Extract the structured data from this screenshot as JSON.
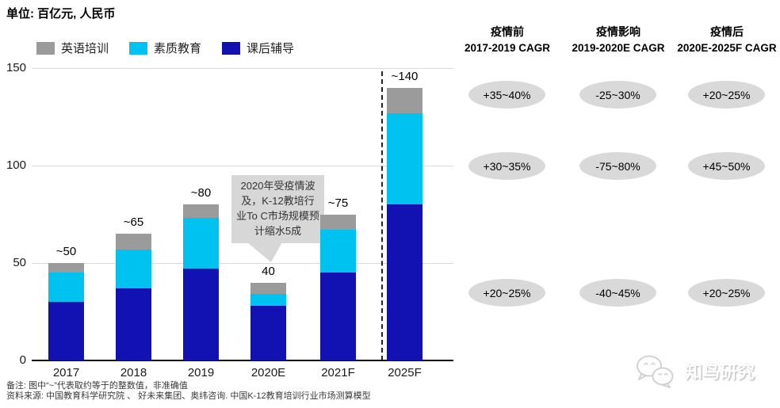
{
  "title": "单位: 百亿元, 人民币",
  "legend": [
    {
      "label": "英语培训",
      "color": "#9b9b9b"
    },
    {
      "label": "素质教育",
      "color": "#00c2f0"
    },
    {
      "label": "课后辅导",
      "color": "#1212b2"
    }
  ],
  "chart_data": {
    "type": "bar",
    "stacked": true,
    "title": "单位: 百亿元, 人民币",
    "categories": [
      "2017",
      "2018",
      "2019",
      "2020E",
      "2021F",
      "2025F"
    ],
    "series": [
      {
        "name": "课后辅导",
        "color": "#1212b2",
        "values": [
          30,
          37,
          47,
          28,
          45,
          80
        ]
      },
      {
        "name": "素质教育",
        "color": "#00c2f0",
        "values": [
          15,
          20,
          26,
          6,
          22,
          47
        ]
      },
      {
        "name": "英语培训",
        "color": "#9b9b9b",
        "values": [
          5,
          8,
          7,
          6,
          8,
          13
        ]
      }
    ],
    "totals_labels": [
      "~50",
      "~65",
      "~80",
      "40",
      "~75",
      "~140"
    ],
    "ylim": [
      0,
      150
    ],
    "yticks": [
      0,
      50,
      100,
      150
    ],
    "grid": true,
    "separator_after_category": "2021F"
  },
  "callout": {
    "text": "2020年受疫情波及，K-12教培行业To C市场规模预计缩水5成"
  },
  "cagr_panel": {
    "columns": [
      {
        "title": "疫情前",
        "subtitle": "2017-2019 CAGR"
      },
      {
        "title": "疫情影响",
        "subtitle": "2019-2020E CAGR"
      },
      {
        "title": "疫情后",
        "subtitle": "2020E-2025F CAGR"
      }
    ],
    "rows": [
      [
        "+35~40%",
        "-25~30%",
        "+20~25%"
      ],
      [
        "+30~35%",
        "-75~80%",
        "+45~50%"
      ],
      [
        "+20~25%",
        "-40~45%",
        "+20~25%"
      ]
    ],
    "pill_color": "#d9d9d9"
  },
  "notes": {
    "line1": "备注: 图中“~”代表取约等于的整数值，非准确值",
    "line2": "资料来源: 中国教育科学研究院 、 好未来集团、奥纬咨询. 中国K-12教育培训行业市场测算模型"
  },
  "watermark": {
    "text": "知鸟研究"
  }
}
